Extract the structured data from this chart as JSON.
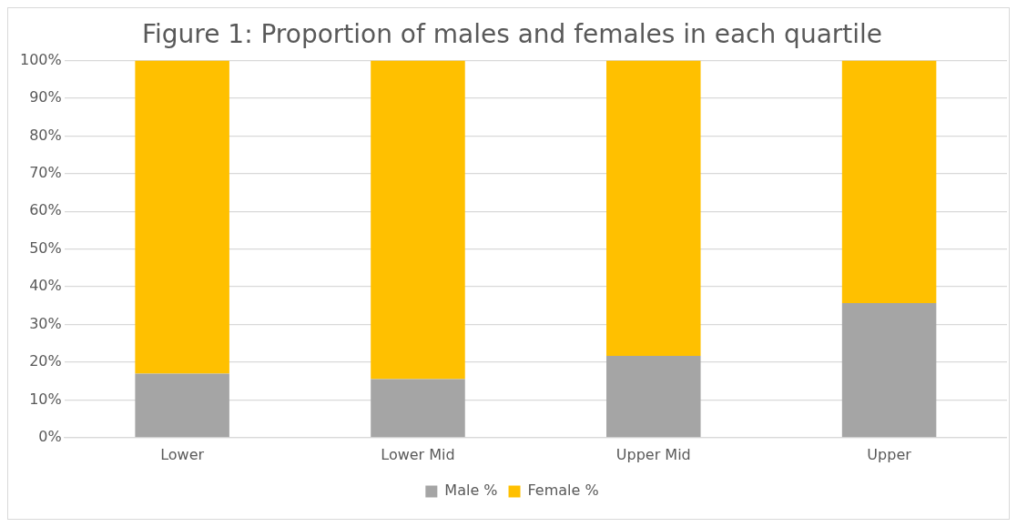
{
  "chart_data": {
    "type": "bar",
    "title": "Figure 1: Proportion of males and females in each quartile",
    "categories": [
      "Lower",
      "Lower Mid",
      "Upper Mid",
      "Upper"
    ],
    "series": [
      {
        "name": "Male %",
        "color": "#a5a5a5",
        "values": [
          17,
          15.5,
          21.7,
          35.7
        ]
      },
      {
        "name": "Female %",
        "color": "#ffc000",
        "values": [
          83,
          84.5,
          78.3,
          64.3
        ]
      }
    ],
    "stacked": true,
    "ylim": [
      0,
      100
    ],
    "yticks": [
      {
        "value": 0,
        "label": "0%"
      },
      {
        "value": 10,
        "label": "10%"
      },
      {
        "value": 20,
        "label": "20%"
      },
      {
        "value": 30,
        "label": "30%"
      },
      {
        "value": 40,
        "label": "40%"
      },
      {
        "value": 50,
        "label": "50%"
      },
      {
        "value": 60,
        "label": "60%"
      },
      {
        "value": 70,
        "label": "70%"
      },
      {
        "value": 80,
        "label": "80%"
      },
      {
        "value": 90,
        "label": "90%"
      },
      {
        "value": 100,
        "label": "100%"
      }
    ],
    "grid": "y",
    "legend": "bottom"
  }
}
